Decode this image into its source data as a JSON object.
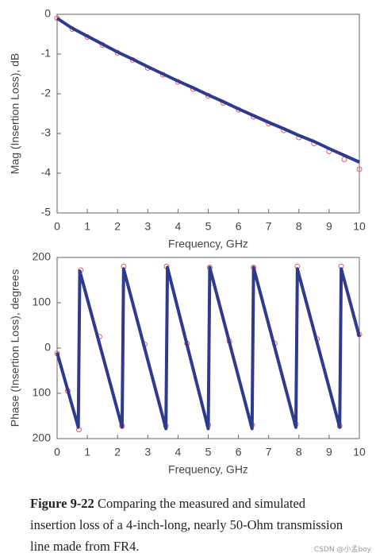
{
  "chart_data": [
    {
      "type": "line",
      "ylabel": "Mag (Insertion Loss), dB",
      "xlabel": "Frequency, GHz",
      "xlim": [
        0,
        10
      ],
      "xticks": [
        0,
        1,
        2,
        3,
        4,
        5,
        6,
        7,
        8,
        9,
        10
      ],
      "ylim": [
        -5,
        0
      ],
      "yticks": [
        0,
        -1,
        -2,
        -3,
        -4,
        -5
      ],
      "series": [
        {
          "style": "markers",
          "color": "#e06060",
          "x": [
            0,
            0.5,
            1,
            1.5,
            2,
            2.5,
            3,
            3.5,
            4,
            4.5,
            5,
            5.5,
            6,
            6.5,
            7,
            7.5,
            8,
            8.5,
            9,
            9.5,
            10
          ],
          "values": [
            -0.1,
            -0.37,
            -0.57,
            -0.77,
            -0.97,
            -1.15,
            -1.35,
            -1.52,
            -1.7,
            -1.88,
            -2.05,
            -2.23,
            -2.4,
            -2.58,
            -2.75,
            -2.92,
            -3.1,
            -3.25,
            -3.45,
            -3.65,
            -3.9
          ]
        },
        {
          "style": "line",
          "color": "#2e3a8c",
          "x": [
            0,
            0.5,
            1,
            1.5,
            2,
            2.5,
            3,
            3.5,
            4,
            4.5,
            5,
            5.5,
            6,
            6.5,
            7,
            7.5,
            8,
            8.5,
            9,
            9.5,
            10
          ],
          "values": [
            -0.1,
            -0.35,
            -0.55,
            -0.75,
            -0.95,
            -1.13,
            -1.32,
            -1.5,
            -1.68,
            -1.85,
            -2.03,
            -2.2,
            -2.38,
            -2.55,
            -2.72,
            -2.88,
            -3.05,
            -3.2,
            -3.38,
            -3.55,
            -3.72
          ]
        }
      ]
    },
    {
      "type": "line",
      "ylabel": "Phase (Insertion Loss), degrees",
      "xlabel": "Frequency, GHz",
      "xlim": [
        0,
        10
      ],
      "xticks": [
        0,
        1,
        2,
        3,
        4,
        5,
        6,
        7,
        8,
        9,
        10
      ],
      "ylim": [
        -200,
        200
      ],
      "yticks": [
        200,
        100,
        0,
        {
          "value": -100,
          "label": "100"
        },
        {
          "value": -200,
          "label": "200"
        }
      ],
      "series": [
        {
          "style": "markers",
          "color": "#e06060",
          "x": [
            0,
            0.35,
            0.72,
            0.78,
            1.4,
            2.15,
            2.2,
            2.9,
            3.6,
            3.62,
            4.3,
            5.0,
            5.05,
            5.7,
            6.45,
            6.5,
            7.2,
            7.9,
            7.95,
            8.6,
            9.35,
            9.4,
            10
          ],
          "values": [
            -12,
            -95,
            -180,
            172,
            25,
            -172,
            180,
            8,
            -172,
            180,
            10,
            -170,
            178,
            15,
            -170,
            178,
            10,
            -168,
            180,
            20,
            -172,
            180,
            30
          ]
        },
        {
          "style": "line",
          "color": "#2e3a8c",
          "x": [
            0,
            0.7,
            0.75,
            2.15,
            2.2,
            3.6,
            3.65,
            5.0,
            5.05,
            6.45,
            6.5,
            7.9,
            7.95,
            9.35,
            9.4,
            10
          ],
          "values": [
            -10,
            -175,
            170,
            -175,
            175,
            -178,
            178,
            -178,
            178,
            -178,
            178,
            -175,
            175,
            -175,
            175,
            25
          ]
        }
      ]
    }
  ],
  "caption": {
    "label": "Figure 9-22",
    "text": "Comparing the measured and simulated insertion loss of a 4-inch-long, nearly 50-Ohm transmission line made from FR4."
  },
  "watermark": "CSDN @小孟boy"
}
